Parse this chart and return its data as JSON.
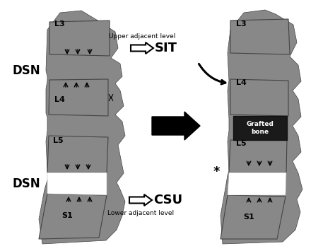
{
  "bg_color": "#ffffff",
  "vert_color": "#888888",
  "vert_edge": "#444444",
  "graft_color": "#1a1a1a",
  "disc_white": "#ffffff",
  "upper_text": "Upper adjacent level",
  "lower_text": "Lower adjacent level",
  "sit_label": "SIT",
  "csu_label": "CSU",
  "dsn_label": "DSN",
  "grafted_text": "Grafted\nbone",
  "star_text": "*",
  "figw": 4.74,
  "figh": 3.55,
  "dpi": 100
}
